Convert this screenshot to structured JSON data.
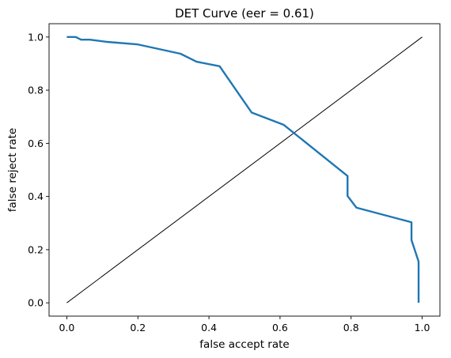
{
  "chart_data": {
    "type": "line",
    "title": "DET Curve (eer = 0.61)",
    "xlabel": "false accept rate",
    "ylabel": "false reject rate",
    "xlim": [
      -0.05,
      1.05
    ],
    "ylim": [
      -0.05,
      1.05
    ],
    "xticks": [
      0.0,
      0.2,
      0.4,
      0.6,
      0.8,
      1.0
    ],
    "xtick_labels": [
      "0.0",
      "0.2",
      "0.4",
      "0.6",
      "0.8",
      "1.0"
    ],
    "yticks": [
      0.0,
      0.2,
      0.4,
      0.6,
      0.8,
      1.0
    ],
    "ytick_labels": [
      "0.0",
      "0.2",
      "0.4",
      "0.6",
      "0.8",
      "1.0"
    ],
    "grid": false,
    "legend": "none",
    "series": [
      {
        "color": "#1f77b4",
        "x": [
          0.0,
          0.025,
          0.04,
          0.065,
          0.11,
          0.2,
          0.32,
          0.365,
          0.43,
          0.52,
          0.61,
          0.79,
          0.79,
          0.815,
          0.97,
          0.97,
          0.99,
          0.99
        ],
        "y": [
          1.0,
          1.0,
          0.99,
          0.99,
          0.982,
          0.972,
          0.937,
          0.907,
          0.89,
          0.716,
          0.67,
          0.477,
          0.402,
          0.358,
          0.303,
          0.236,
          0.155,
          0.0
        ]
      },
      {
        "color": "#000000",
        "x": [
          0.0,
          1.0
        ],
        "y": [
          0.0,
          1.0
        ]
      }
    ]
  }
}
